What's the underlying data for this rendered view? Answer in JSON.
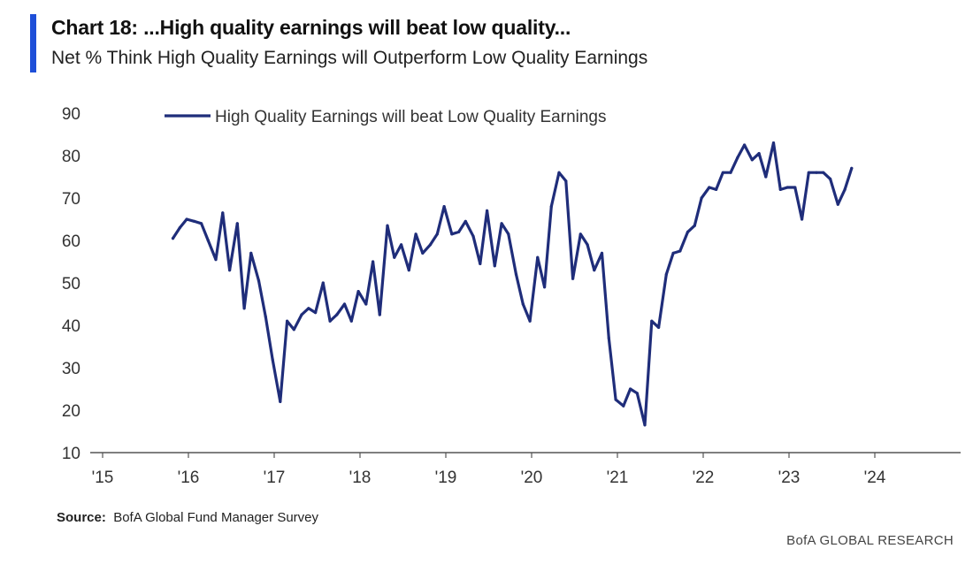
{
  "title": "Chart 18: ...High quality earnings will beat low quality...",
  "subtitle": "Net % Think High Quality Earnings will Outperform Low Quality Earnings",
  "source_label": "Source:",
  "source_text": "BofA Global Fund Manager Survey",
  "brand": "BofA GLOBAL RESEARCH",
  "colors": {
    "line": "#1f2d7a",
    "accent": "#1e4fd8",
    "axis": "#555555"
  },
  "chart_data": {
    "type": "line",
    "xlabel": "",
    "ylabel": "",
    "xlim": [
      2015,
      2025
    ],
    "ylim": [
      10,
      90
    ],
    "yticks": [
      10,
      20,
      30,
      40,
      50,
      60,
      70,
      80,
      90
    ],
    "xticks": [
      {
        "value": 2015,
        "label": "'15"
      },
      {
        "value": 2016,
        "label": "'16"
      },
      {
        "value": 2017,
        "label": "'17"
      },
      {
        "value": 2018,
        "label": "'18"
      },
      {
        "value": 2019,
        "label": "'19"
      },
      {
        "value": 2020,
        "label": "'20"
      },
      {
        "value": 2021,
        "label": "'21"
      },
      {
        "value": 2022,
        "label": "'22"
      },
      {
        "value": 2023,
        "label": "'23"
      },
      {
        "value": 2024,
        "label": "'24"
      }
    ],
    "grid": false,
    "legend_position": "top-left",
    "series": [
      {
        "name": "High Quality Earnings will beat Low Quality Earnings",
        "points": [
          [
            2015.82,
            60.5
          ],
          [
            2015.9,
            63
          ],
          [
            2015.98,
            65
          ],
          [
            2016.07,
            64.5
          ],
          [
            2016.15,
            64
          ],
          [
            2016.23,
            60
          ],
          [
            2016.32,
            55.5
          ],
          [
            2016.4,
            66.5
          ],
          [
            2016.48,
            53
          ],
          [
            2016.57,
            64
          ],
          [
            2016.65,
            44
          ],
          [
            2016.73,
            57
          ],
          [
            2016.82,
            50.5
          ],
          [
            2016.9,
            42
          ],
          [
            2016.98,
            32
          ],
          [
            2017.07,
            22
          ],
          [
            2017.15,
            41
          ],
          [
            2017.23,
            39
          ],
          [
            2017.32,
            42.5
          ],
          [
            2017.4,
            44
          ],
          [
            2017.48,
            43
          ],
          [
            2017.57,
            50
          ],
          [
            2017.65,
            41
          ],
          [
            2017.73,
            42.5
          ],
          [
            2017.82,
            45
          ],
          [
            2017.9,
            41
          ],
          [
            2017.98,
            48
          ],
          [
            2018.07,
            45
          ],
          [
            2018.15,
            55
          ],
          [
            2018.23,
            42.5
          ],
          [
            2018.32,
            63.5
          ],
          [
            2018.4,
            56
          ],
          [
            2018.48,
            59
          ],
          [
            2018.57,
            53
          ],
          [
            2018.65,
            61.5
          ],
          [
            2018.73,
            57
          ],
          [
            2018.82,
            59
          ],
          [
            2018.9,
            61.5
          ],
          [
            2018.98,
            68
          ],
          [
            2019.07,
            61.5
          ],
          [
            2019.15,
            62
          ],
          [
            2019.23,
            64.5
          ],
          [
            2019.32,
            61
          ],
          [
            2019.4,
            54.5
          ],
          [
            2019.48,
            67
          ],
          [
            2019.57,
            54
          ],
          [
            2019.65,
            64
          ],
          [
            2019.73,
            61.5
          ],
          [
            2019.82,
            52
          ],
          [
            2019.9,
            45
          ],
          [
            2019.98,
            41
          ],
          [
            2020.07,
            56
          ],
          [
            2020.15,
            49
          ],
          [
            2020.23,
            68
          ],
          [
            2020.32,
            76
          ],
          [
            2020.4,
            74
          ],
          [
            2020.48,
            51
          ],
          [
            2020.57,
            61.5
          ],
          [
            2020.65,
            59
          ],
          [
            2020.73,
            53
          ],
          [
            2020.82,
            57
          ],
          [
            2020.9,
            37
          ],
          [
            2020.98,
            22.5
          ],
          [
            2021.07,
            21
          ],
          [
            2021.15,
            25
          ],
          [
            2021.23,
            24
          ],
          [
            2021.32,
            16.5
          ],
          [
            2021.4,
            41
          ],
          [
            2021.48,
            39.5
          ],
          [
            2021.57,
            52
          ],
          [
            2021.65,
            57
          ],
          [
            2021.73,
            57.5
          ],
          [
            2021.82,
            62
          ],
          [
            2021.9,
            63.5
          ],
          [
            2021.98,
            70
          ],
          [
            2022.07,
            72.5
          ],
          [
            2022.15,
            72
          ],
          [
            2022.23,
            76
          ],
          [
            2022.32,
            76
          ],
          [
            2022.4,
            79.5
          ],
          [
            2022.48,
            82.5
          ],
          [
            2022.57,
            79
          ],
          [
            2022.65,
            80.5
          ],
          [
            2022.73,
            75
          ],
          [
            2022.82,
            83
          ],
          [
            2022.9,
            72
          ],
          [
            2022.98,
            72.5
          ],
          [
            2023.07,
            72.5
          ],
          [
            2023.15,
            65
          ],
          [
            2023.23,
            76
          ],
          [
            2023.32,
            76
          ],
          [
            2023.4,
            76
          ],
          [
            2023.48,
            74.5
          ],
          [
            2023.57,
            68.5
          ],
          [
            2023.65,
            72
          ],
          [
            2023.73,
            77
          ]
        ]
      }
    ]
  }
}
